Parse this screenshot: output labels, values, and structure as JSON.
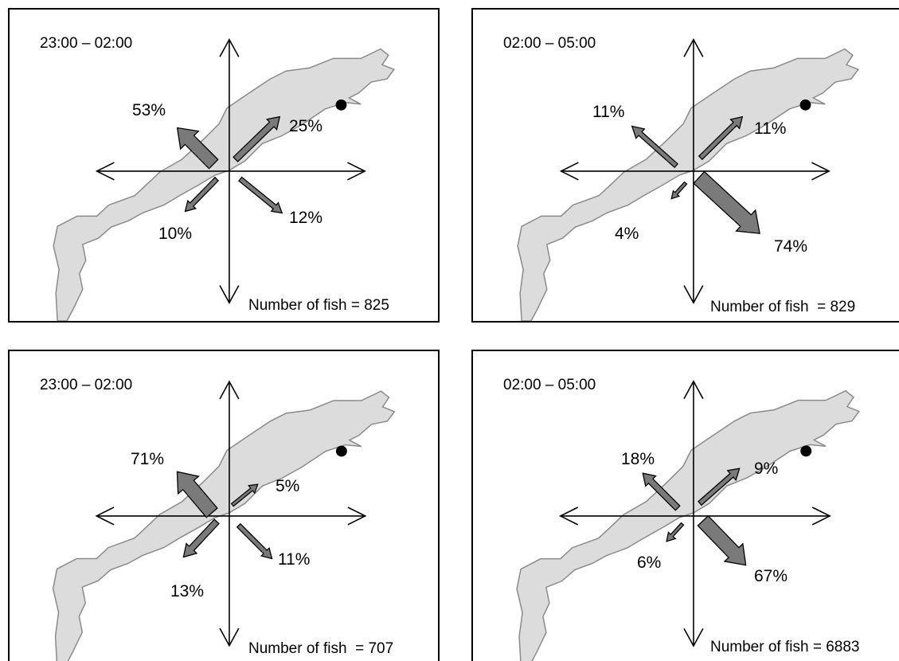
{
  "panels": [
    {
      "time": "23:00 – 02:00",
      "count_label": "Number of fish = ",
      "count": "825",
      "directions": {
        "nw": "53%",
        "ne": "25%",
        "sw": "10%",
        "se": "12%"
      }
    },
    {
      "time": "02:00 – 05:00",
      "count_label": "Number of fish  = ",
      "count": "829",
      "directions": {
        "nw": "11%",
        "ne": "11%",
        "sw": "4%",
        "se": "74%"
      }
    },
    {
      "time": "23:00 – 02:00",
      "count_label": "Number of fish  = ",
      "count": "707",
      "directions": {
        "nw": "71%",
        "ne": "5%",
        "sw": "13%",
        "se": "11%"
      }
    },
    {
      "time": "02:00 – 05:00",
      "count_label": "Number of fish = ",
      "count": "6883",
      "directions": {
        "nw": "18%",
        "ne": "9%",
        "sw": "6%",
        "se": "67%"
      }
    }
  ],
  "colors": {
    "lake_fill": "#dcdcdc",
    "lake_stroke": "#8a8a8a",
    "arrow_fill": "#7a7a7a"
  },
  "icons": {
    "marker": "site-dot-icon"
  }
}
